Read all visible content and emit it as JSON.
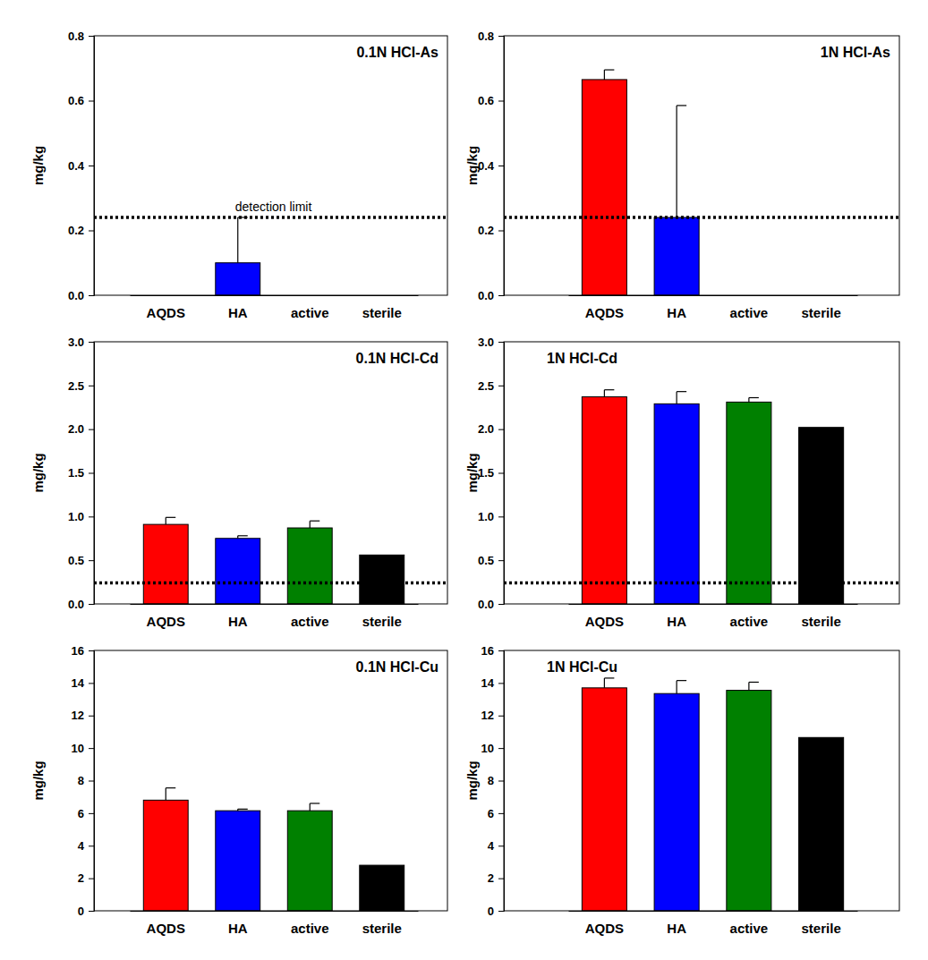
{
  "chart_data": [
    {
      "type": "bar",
      "title": "0.1N HCl-As",
      "y_label": "mg/kg",
      "categories": [
        "AQDS",
        "HA",
        "active",
        "sterile"
      ],
      "values": [
        0,
        0.1,
        0,
        0
      ],
      "errors": [
        null,
        0.14,
        null,
        null
      ],
      "colors": [
        "#ff0000",
        "#0000ff",
        "#008000",
        "#000000"
      ],
      "ylim": [
        0,
        0.8
      ],
      "yticks": [
        {
          "value": 0,
          "label": "0.0"
        },
        0.2,
        0.4,
        0.6,
        0.8
      ],
      "detection_limit": 0.24,
      "annotation": "detection limit"
    },
    {
      "type": "bar",
      "title": "1N HCl-As",
      "y_label": "mg/kg",
      "categories": [
        "AQDS",
        "HA",
        "active",
        "sterile"
      ],
      "values": [
        0.665,
        0.24,
        0,
        0
      ],
      "errors": [
        0.03,
        0.345,
        null,
        null
      ],
      "colors": [
        "#ff0000",
        "#0000ff",
        "#008000",
        "#000000"
      ],
      "ylim": [
        0,
        0.8
      ],
      "yticks": [
        {
          "value": 0,
          "label": "0.0"
        },
        0.2,
        0.4,
        0.6,
        0.8
      ],
      "detection_limit": 0.24
    },
    {
      "type": "bar",
      "title": "0.1N HCl-Cd",
      "y_label": "mg/kg",
      "categories": [
        "AQDS",
        "HA",
        "active",
        "sterile"
      ],
      "values": [
        0.91,
        0.75,
        0.87,
        0.56
      ],
      "errors": [
        0.08,
        0.03,
        0.08,
        null
      ],
      "colors": [
        "#ff0000",
        "#0000ff",
        "#008000",
        "#000000"
      ],
      "ylim": [
        0,
        3
      ],
      "yticks": [
        {
          "value": 0,
          "label": "0.0"
        },
        0.5,
        {
          "value": 1,
          "label": "1.0"
        },
        1.5,
        {
          "value": 2,
          "label": "2.0"
        },
        2.5,
        {
          "value": 3,
          "label": "3.0"
        }
      ],
      "detection_limit": 0.24
    },
    {
      "type": "bar",
      "title": "1N HCl-Cd",
      "y_label": "mg/kg",
      "categories": [
        "AQDS",
        "HA",
        "active",
        "sterile"
      ],
      "values": [
        2.37,
        2.29,
        2.31,
        2.02
      ],
      "errors": [
        0.08,
        0.14,
        0.05,
        null
      ],
      "colors": [
        "#ff0000",
        "#0000ff",
        "#008000",
        "#000000"
      ],
      "ylim": [
        0,
        3
      ],
      "yticks": [
        {
          "value": 0,
          "label": "0.0"
        },
        0.5,
        {
          "value": 1,
          "label": "1.0"
        },
        1.5,
        {
          "value": 2,
          "label": "2.0"
        },
        2.5,
        {
          "value": 3,
          "label": "3.0"
        }
      ],
      "detection_limit": 0.24
    },
    {
      "type": "bar",
      "title": "0.1N HCl-Cu",
      "y_label": "mg/kg",
      "categories": [
        "AQDS",
        "HA",
        "active",
        "sterile"
      ],
      "values": [
        6.8,
        6.15,
        6.15,
        2.8
      ],
      "errors": [
        0.75,
        0.1,
        0.45,
        null
      ],
      "colors": [
        "#ff0000",
        "#0000ff",
        "#008000",
        "#000000"
      ],
      "ylim": [
        0,
        16
      ],
      "yticks": [
        0,
        2,
        4,
        6,
        8,
        10,
        12,
        14,
        16
      ]
    },
    {
      "type": "bar",
      "title": "1N HCl-Cu",
      "y_label": "mg/kg",
      "categories": [
        "AQDS",
        "HA",
        "active",
        "sterile"
      ],
      "values": [
        13.7,
        13.35,
        13.55,
        10.65
      ],
      "errors": [
        0.6,
        0.8,
        0.5,
        null
      ],
      "colors": [
        "#ff0000",
        "#0000ff",
        "#008000",
        "#000000"
      ],
      "ylim": [
        0,
        16
      ],
      "yticks": [
        0,
        2,
        4,
        6,
        8,
        10,
        12,
        14,
        16
      ]
    }
  ]
}
